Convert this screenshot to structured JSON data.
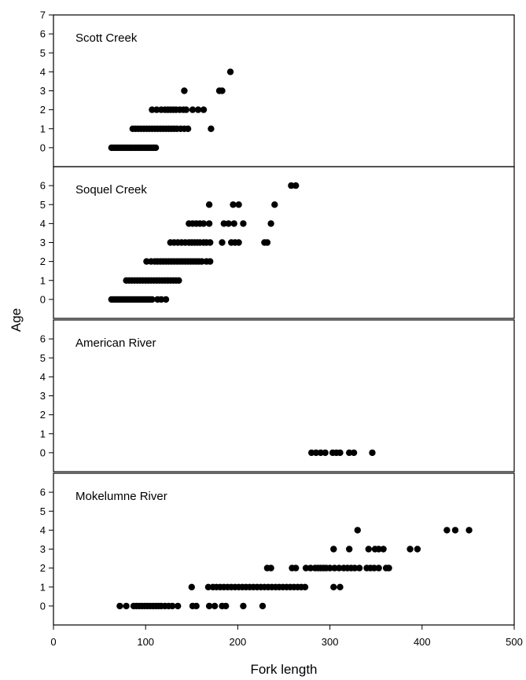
{
  "chart_data": {
    "type": "scatter",
    "xlabel": "Fork length",
    "ylabel": "Age",
    "xlim": [
      0,
      500
    ],
    "x_ticks": [
      "0",
      "100",
      "200",
      "300",
      "400",
      "500"
    ],
    "grid": false,
    "legend": "none",
    "marker_color": "#000000",
    "panels": [
      {
        "label": "Scott Creek",
        "ylim": [
          -1,
          7
        ],
        "y_ticks": [
          "0",
          "1",
          "2",
          "3",
          "4",
          "5",
          "6",
          "7"
        ],
        "points": [
          [
            63,
            0
          ],
          [
            65,
            0
          ],
          [
            67,
            0
          ],
          [
            69,
            0
          ],
          [
            71,
            0
          ],
          [
            73,
            0
          ],
          [
            75,
            0
          ],
          [
            77,
            0
          ],
          [
            79,
            0
          ],
          [
            81,
            0
          ],
          [
            83,
            0
          ],
          [
            85,
            0
          ],
          [
            87,
            0
          ],
          [
            89,
            0
          ],
          [
            91,
            0
          ],
          [
            93,
            0
          ],
          [
            95,
            0
          ],
          [
            97,
            0
          ],
          [
            99,
            0
          ],
          [
            101,
            0
          ],
          [
            103,
            0
          ],
          [
            105,
            0
          ],
          [
            107,
            0
          ],
          [
            109,
            0
          ],
          [
            111,
            0
          ],
          [
            86,
            1
          ],
          [
            89,
            1
          ],
          [
            92,
            1
          ],
          [
            95,
            1
          ],
          [
            98,
            1
          ],
          [
            101,
            1
          ],
          [
            104,
            1
          ],
          [
            107,
            1
          ],
          [
            110,
            1
          ],
          [
            113,
            1
          ],
          [
            116,
            1
          ],
          [
            119,
            1
          ],
          [
            122,
            1
          ],
          [
            125,
            1
          ],
          [
            128,
            1
          ],
          [
            131,
            1
          ],
          [
            134,
            1
          ],
          [
            138,
            1
          ],
          [
            142,
            1
          ],
          [
            146,
            1
          ],
          [
            171,
            1
          ],
          [
            107,
            2
          ],
          [
            112,
            2
          ],
          [
            117,
            2
          ],
          [
            121,
            2
          ],
          [
            124,
            2
          ],
          [
            127,
            2
          ],
          [
            130,
            2
          ],
          [
            133,
            2
          ],
          [
            137,
            2
          ],
          [
            141,
            2
          ],
          [
            144,
            2
          ],
          [
            151,
            2
          ],
          [
            157,
            2
          ],
          [
            163,
            2
          ],
          [
            142,
            3
          ],
          [
            180,
            3
          ],
          [
            183,
            3
          ],
          [
            192,
            4
          ]
        ]
      },
      {
        "label": "Soquel Creek",
        "ylim": [
          -1,
          7
        ],
        "y_ticks": [
          "0",
          "1",
          "2",
          "3",
          "4",
          "5",
          "6"
        ],
        "points": [
          [
            63,
            0
          ],
          [
            65,
            0
          ],
          [
            67,
            0
          ],
          [
            69,
            0
          ],
          [
            71,
            0
          ],
          [
            73,
            0
          ],
          [
            75,
            0
          ],
          [
            77,
            0
          ],
          [
            79,
            0
          ],
          [
            81,
            0
          ],
          [
            83,
            0
          ],
          [
            85,
            0
          ],
          [
            87,
            0
          ],
          [
            89,
            0
          ],
          [
            91,
            0
          ],
          [
            93,
            0
          ],
          [
            95,
            0
          ],
          [
            97,
            0
          ],
          [
            99,
            0
          ],
          [
            101,
            0
          ],
          [
            103,
            0
          ],
          [
            105,
            0
          ],
          [
            107,
            0
          ],
          [
            113,
            0
          ],
          [
            117,
            0
          ],
          [
            122,
            0
          ],
          [
            79,
            1
          ],
          [
            82,
            1
          ],
          [
            85,
            1
          ],
          [
            88,
            1
          ],
          [
            91,
            1
          ],
          [
            94,
            1
          ],
          [
            97,
            1
          ],
          [
            100,
            1
          ],
          [
            103,
            1
          ],
          [
            106,
            1
          ],
          [
            109,
            1
          ],
          [
            112,
            1
          ],
          [
            115,
            1
          ],
          [
            118,
            1
          ],
          [
            121,
            1
          ],
          [
            124,
            1
          ],
          [
            127,
            1
          ],
          [
            130,
            1
          ],
          [
            133,
            1
          ],
          [
            136,
            1
          ],
          [
            101,
            2
          ],
          [
            106,
            2
          ],
          [
            110,
            2
          ],
          [
            113,
            2
          ],
          [
            116,
            2
          ],
          [
            119,
            2
          ],
          [
            122,
            2
          ],
          [
            125,
            2
          ],
          [
            128,
            2
          ],
          [
            131,
            2
          ],
          [
            134,
            2
          ],
          [
            137,
            2
          ],
          [
            140,
            2
          ],
          [
            143,
            2
          ],
          [
            146,
            2
          ],
          [
            149,
            2
          ],
          [
            152,
            2
          ],
          [
            155,
            2
          ],
          [
            158,
            2
          ],
          [
            161,
            2
          ],
          [
            166,
            2
          ],
          [
            170,
            2
          ],
          [
            127,
            3
          ],
          [
            131,
            3
          ],
          [
            135,
            3
          ],
          [
            139,
            3
          ],
          [
            143,
            3
          ],
          [
            147,
            3
          ],
          [
            150,
            3
          ],
          [
            153,
            3
          ],
          [
            156,
            3
          ],
          [
            159,
            3
          ],
          [
            163,
            3
          ],
          [
            166,
            3
          ],
          [
            170,
            3
          ],
          [
            183,
            3
          ],
          [
            193,
            3
          ],
          [
            197,
            3
          ],
          [
            201,
            3
          ],
          [
            229,
            3
          ],
          [
            232,
            3
          ],
          [
            147,
            4
          ],
          [
            151,
            4
          ],
          [
            155,
            4
          ],
          [
            159,
            4
          ],
          [
            163,
            4
          ],
          [
            169,
            4
          ],
          [
            185,
            4
          ],
          [
            190,
            4
          ],
          [
            196,
            4
          ],
          [
            206,
            4
          ],
          [
            236,
            4
          ],
          [
            169,
            5
          ],
          [
            195,
            5
          ],
          [
            201,
            5
          ],
          [
            240,
            5
          ],
          [
            258,
            6
          ],
          [
            263,
            6
          ]
        ]
      },
      {
        "label": "American River",
        "ylim": [
          -1,
          7
        ],
        "y_ticks": [
          "0",
          "1",
          "2",
          "3",
          "4",
          "5",
          "6"
        ],
        "points": [
          [
            280,
            0
          ],
          [
            285,
            0
          ],
          [
            290,
            0
          ],
          [
            295,
            0
          ],
          [
            303,
            0
          ],
          [
            307,
            0
          ],
          [
            311,
            0
          ],
          [
            321,
            0
          ],
          [
            326,
            0
          ],
          [
            346,
            0
          ]
        ]
      },
      {
        "label": "Mokelumne River",
        "ylim": [
          -1,
          7
        ],
        "y_ticks": [
          "0",
          "1",
          "2",
          "3",
          "4",
          "5",
          "6"
        ],
        "points": [
          [
            72,
            0
          ],
          [
            79,
            0
          ],
          [
            87,
            0
          ],
          [
            90,
            0
          ],
          [
            93,
            0
          ],
          [
            96,
            0
          ],
          [
            99,
            0
          ],
          [
            102,
            0
          ],
          [
            105,
            0
          ],
          [
            108,
            0
          ],
          [
            111,
            0
          ],
          [
            114,
            0
          ],
          [
            117,
            0
          ],
          [
            121,
            0
          ],
          [
            125,
            0
          ],
          [
            129,
            0
          ],
          [
            135,
            0
          ],
          [
            151,
            0
          ],
          [
            155,
            0
          ],
          [
            169,
            0
          ],
          [
            175,
            0
          ],
          [
            183,
            0
          ],
          [
            187,
            0
          ],
          [
            206,
            0
          ],
          [
            227,
            0
          ],
          [
            150,
            1
          ],
          [
            168,
            1
          ],
          [
            173,
            1
          ],
          [
            177,
            1
          ],
          [
            181,
            1
          ],
          [
            185,
            1
          ],
          [
            189,
            1
          ],
          [
            193,
            1
          ],
          [
            197,
            1
          ],
          [
            201,
            1
          ],
          [
            205,
            1
          ],
          [
            209,
            1
          ],
          [
            213,
            1
          ],
          [
            217,
            1
          ],
          [
            221,
            1
          ],
          [
            225,
            1
          ],
          [
            229,
            1
          ],
          [
            233,
            1
          ],
          [
            237,
            1
          ],
          [
            241,
            1
          ],
          [
            245,
            1
          ],
          [
            249,
            1
          ],
          [
            253,
            1
          ],
          [
            257,
            1
          ],
          [
            261,
            1
          ],
          [
            265,
            1
          ],
          [
            269,
            1
          ],
          [
            273,
            1
          ],
          [
            304,
            1
          ],
          [
            311,
            1
          ],
          [
            232,
            2
          ],
          [
            236,
            2
          ],
          [
            259,
            2
          ],
          [
            263,
            2
          ],
          [
            274,
            2
          ],
          [
            279,
            2
          ],
          [
            284,
            2
          ],
          [
            287,
            2
          ],
          [
            290,
            2
          ],
          [
            293,
            2
          ],
          [
            296,
            2
          ],
          [
            300,
            2
          ],
          [
            305,
            2
          ],
          [
            310,
            2
          ],
          [
            315,
            2
          ],
          [
            319,
            2
          ],
          [
            323,
            2
          ],
          [
            327,
            2
          ],
          [
            332,
            2
          ],
          [
            340,
            2
          ],
          [
            344,
            2
          ],
          [
            348,
            2
          ],
          [
            353,
            2
          ],
          [
            361,
            2
          ],
          [
            364,
            2
          ],
          [
            304,
            3
          ],
          [
            321,
            3
          ],
          [
            342,
            3
          ],
          [
            349,
            3
          ],
          [
            353,
            3
          ],
          [
            358,
            3
          ],
          [
            387,
            3
          ],
          [
            395,
            3
          ],
          [
            330,
            4
          ],
          [
            427,
            4
          ],
          [
            436,
            4
          ],
          [
            451,
            4
          ]
        ]
      }
    ]
  }
}
